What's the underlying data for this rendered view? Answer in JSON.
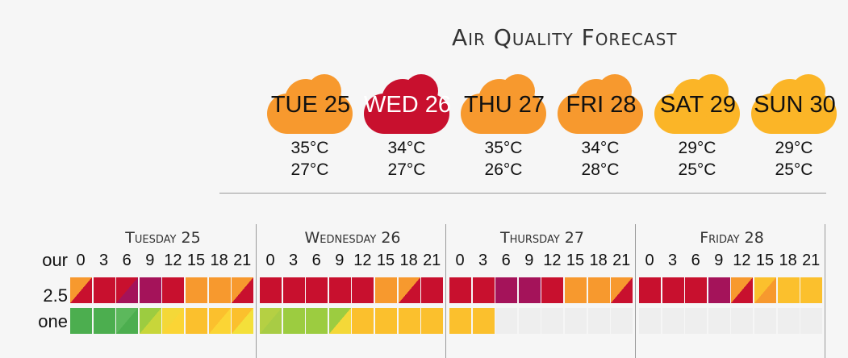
{
  "title": "Air Quality Forecast",
  "days": [
    {
      "label": "TUE 25",
      "high": "35°C",
      "low": "27°C",
      "color": "#f7992e",
      "label_color": "#111111"
    },
    {
      "label": "WED 26",
      "high": "34°C",
      "low": "27°C",
      "color": "#c8102e",
      "label_color": "#ffffff"
    },
    {
      "label": "THU 27",
      "high": "35°C",
      "low": "26°C",
      "color": "#f7992e",
      "label_color": "#111111"
    },
    {
      "label": "FRI 28",
      "high": "34°C",
      "low": "28°C",
      "color": "#f7992e",
      "label_color": "#111111"
    },
    {
      "label": "SAT 29",
      "high": "29°C",
      "low": "25°C",
      "color": "#fbb527",
      "label_color": "#111111"
    },
    {
      "label": "SUN 30",
      "high": "29°C",
      "low": "25°C",
      "color": "#fbb527",
      "label_color": "#111111"
    }
  ],
  "row_labels": [
    "our",
    "2.5",
    "one"
  ],
  "table": [
    {
      "title": "Tuesday 25",
      "hours": [
        "0",
        "3",
        "6",
        "9",
        "12",
        "15",
        "18",
        "21"
      ],
      "pm25": [
        [
          "#f7992e",
          "#c8102e"
        ],
        [
          "#c8102e",
          "#c8102e"
        ],
        [
          "#c8102e",
          "#a4135a"
        ],
        [
          "#a4135a",
          "#a4135a"
        ],
        [
          "#c8102e",
          "#c8102e"
        ],
        [
          "#f7992e",
          "#f7992e"
        ],
        [
          "#f7992e",
          "#f7992e"
        ],
        [
          "#f7992e",
          "#c8102e"
        ]
      ],
      "ozone": [
        [
          "#4cae4f",
          "#4cae4f"
        ],
        [
          "#4cae4f",
          "#4cae4f"
        ],
        [
          "#5cb85c",
          "#4cae4f"
        ],
        [
          "#9ccc40",
          "#c8d63a"
        ],
        [
          "#f4d838",
          "#fbd535"
        ],
        [
          "#fbc02d",
          "#fbc02d"
        ],
        [
          "#fbc02d",
          "#fbd535"
        ],
        [
          "#fbc02d",
          "#f4e03a"
        ]
      ]
    },
    {
      "title": "Wednesday 26",
      "hours": [
        "0",
        "3",
        "6",
        "9",
        "12",
        "15",
        "18",
        "21"
      ],
      "pm25": [
        [
          "#c8102e",
          "#c8102e"
        ],
        [
          "#c8102e",
          "#c8102e"
        ],
        [
          "#c8102e",
          "#c8102e"
        ],
        [
          "#c8102e",
          "#c8102e"
        ],
        [
          "#c8102e",
          "#c8102e"
        ],
        [
          "#f7992e",
          "#f7992e"
        ],
        [
          "#f7992e",
          "#c8102e"
        ],
        [
          "#c8102e",
          "#c8102e"
        ]
      ],
      "ozone": [
        [
          "#b5d043",
          "#a8cc45"
        ],
        [
          "#9ccc40",
          "#9ccc40"
        ],
        [
          "#9ccc40",
          "#9ccc40"
        ],
        [
          "#9ccc40",
          "#f4d838"
        ],
        [
          "#fbc02d",
          "#fbc02d"
        ],
        [
          "#fbc02d",
          "#fbc02d"
        ],
        [
          "#fbc02d",
          "#fbc02d"
        ],
        [
          "#fbc02d",
          "#fbc02d"
        ]
      ]
    },
    {
      "title": "Thursday 27",
      "hours": [
        "0",
        "3",
        "6",
        "9",
        "12",
        "15",
        "18",
        "21"
      ],
      "pm25": [
        [
          "#c8102e",
          "#c8102e"
        ],
        [
          "#c8102e",
          "#c8102e"
        ],
        [
          "#a4135a",
          "#a4135a"
        ],
        [
          "#a4135a",
          "#a4135a"
        ],
        [
          "#c8102e",
          "#c8102e"
        ],
        [
          "#f7992e",
          "#f7992e"
        ],
        [
          "#f7992e",
          "#f7992e"
        ],
        [
          "#f7992e",
          "#c8102e"
        ]
      ],
      "ozone": [
        [
          "#fbc02d",
          "#fbc02d"
        ],
        [
          "#fbc02d",
          "#fbc02d"
        ],
        [
          "#eeeeee",
          "#eeeeee"
        ],
        [
          "#eeeeee",
          "#eeeeee"
        ],
        [
          "#eeeeee",
          "#eeeeee"
        ],
        [
          "#eeeeee",
          "#eeeeee"
        ],
        [
          "#eeeeee",
          "#eeeeee"
        ],
        [
          "#eeeeee",
          "#eeeeee"
        ]
      ]
    },
    {
      "title": "Friday 28",
      "hours": [
        "0",
        "3",
        "6",
        "9",
        "12",
        "15",
        "18",
        "21"
      ],
      "pm25": [
        [
          "#c8102e",
          "#c8102e"
        ],
        [
          "#c8102e",
          "#c8102e"
        ],
        [
          "#c8102e",
          "#c8102e"
        ],
        [
          "#a4135a",
          "#a4135a"
        ],
        [
          "#f7992e",
          "#c8102e"
        ],
        [
          "#fbc02d",
          "#f7992e"
        ],
        [
          "#fbc02d",
          "#fbc02d"
        ],
        [
          "#fbc02d",
          "#fbc02d"
        ]
      ],
      "ozone": [
        [
          "#eeeeee",
          "#eeeeee"
        ],
        [
          "#eeeeee",
          "#eeeeee"
        ],
        [
          "#eeeeee",
          "#eeeeee"
        ],
        [
          "#eeeeee",
          "#eeeeee"
        ],
        [
          "#eeeeee",
          "#eeeeee"
        ],
        [
          "#eeeeee",
          "#eeeeee"
        ],
        [
          "#eeeeee",
          "#eeeeee"
        ],
        [
          "#eeeeee",
          "#eeeeee"
        ]
      ]
    }
  ]
}
